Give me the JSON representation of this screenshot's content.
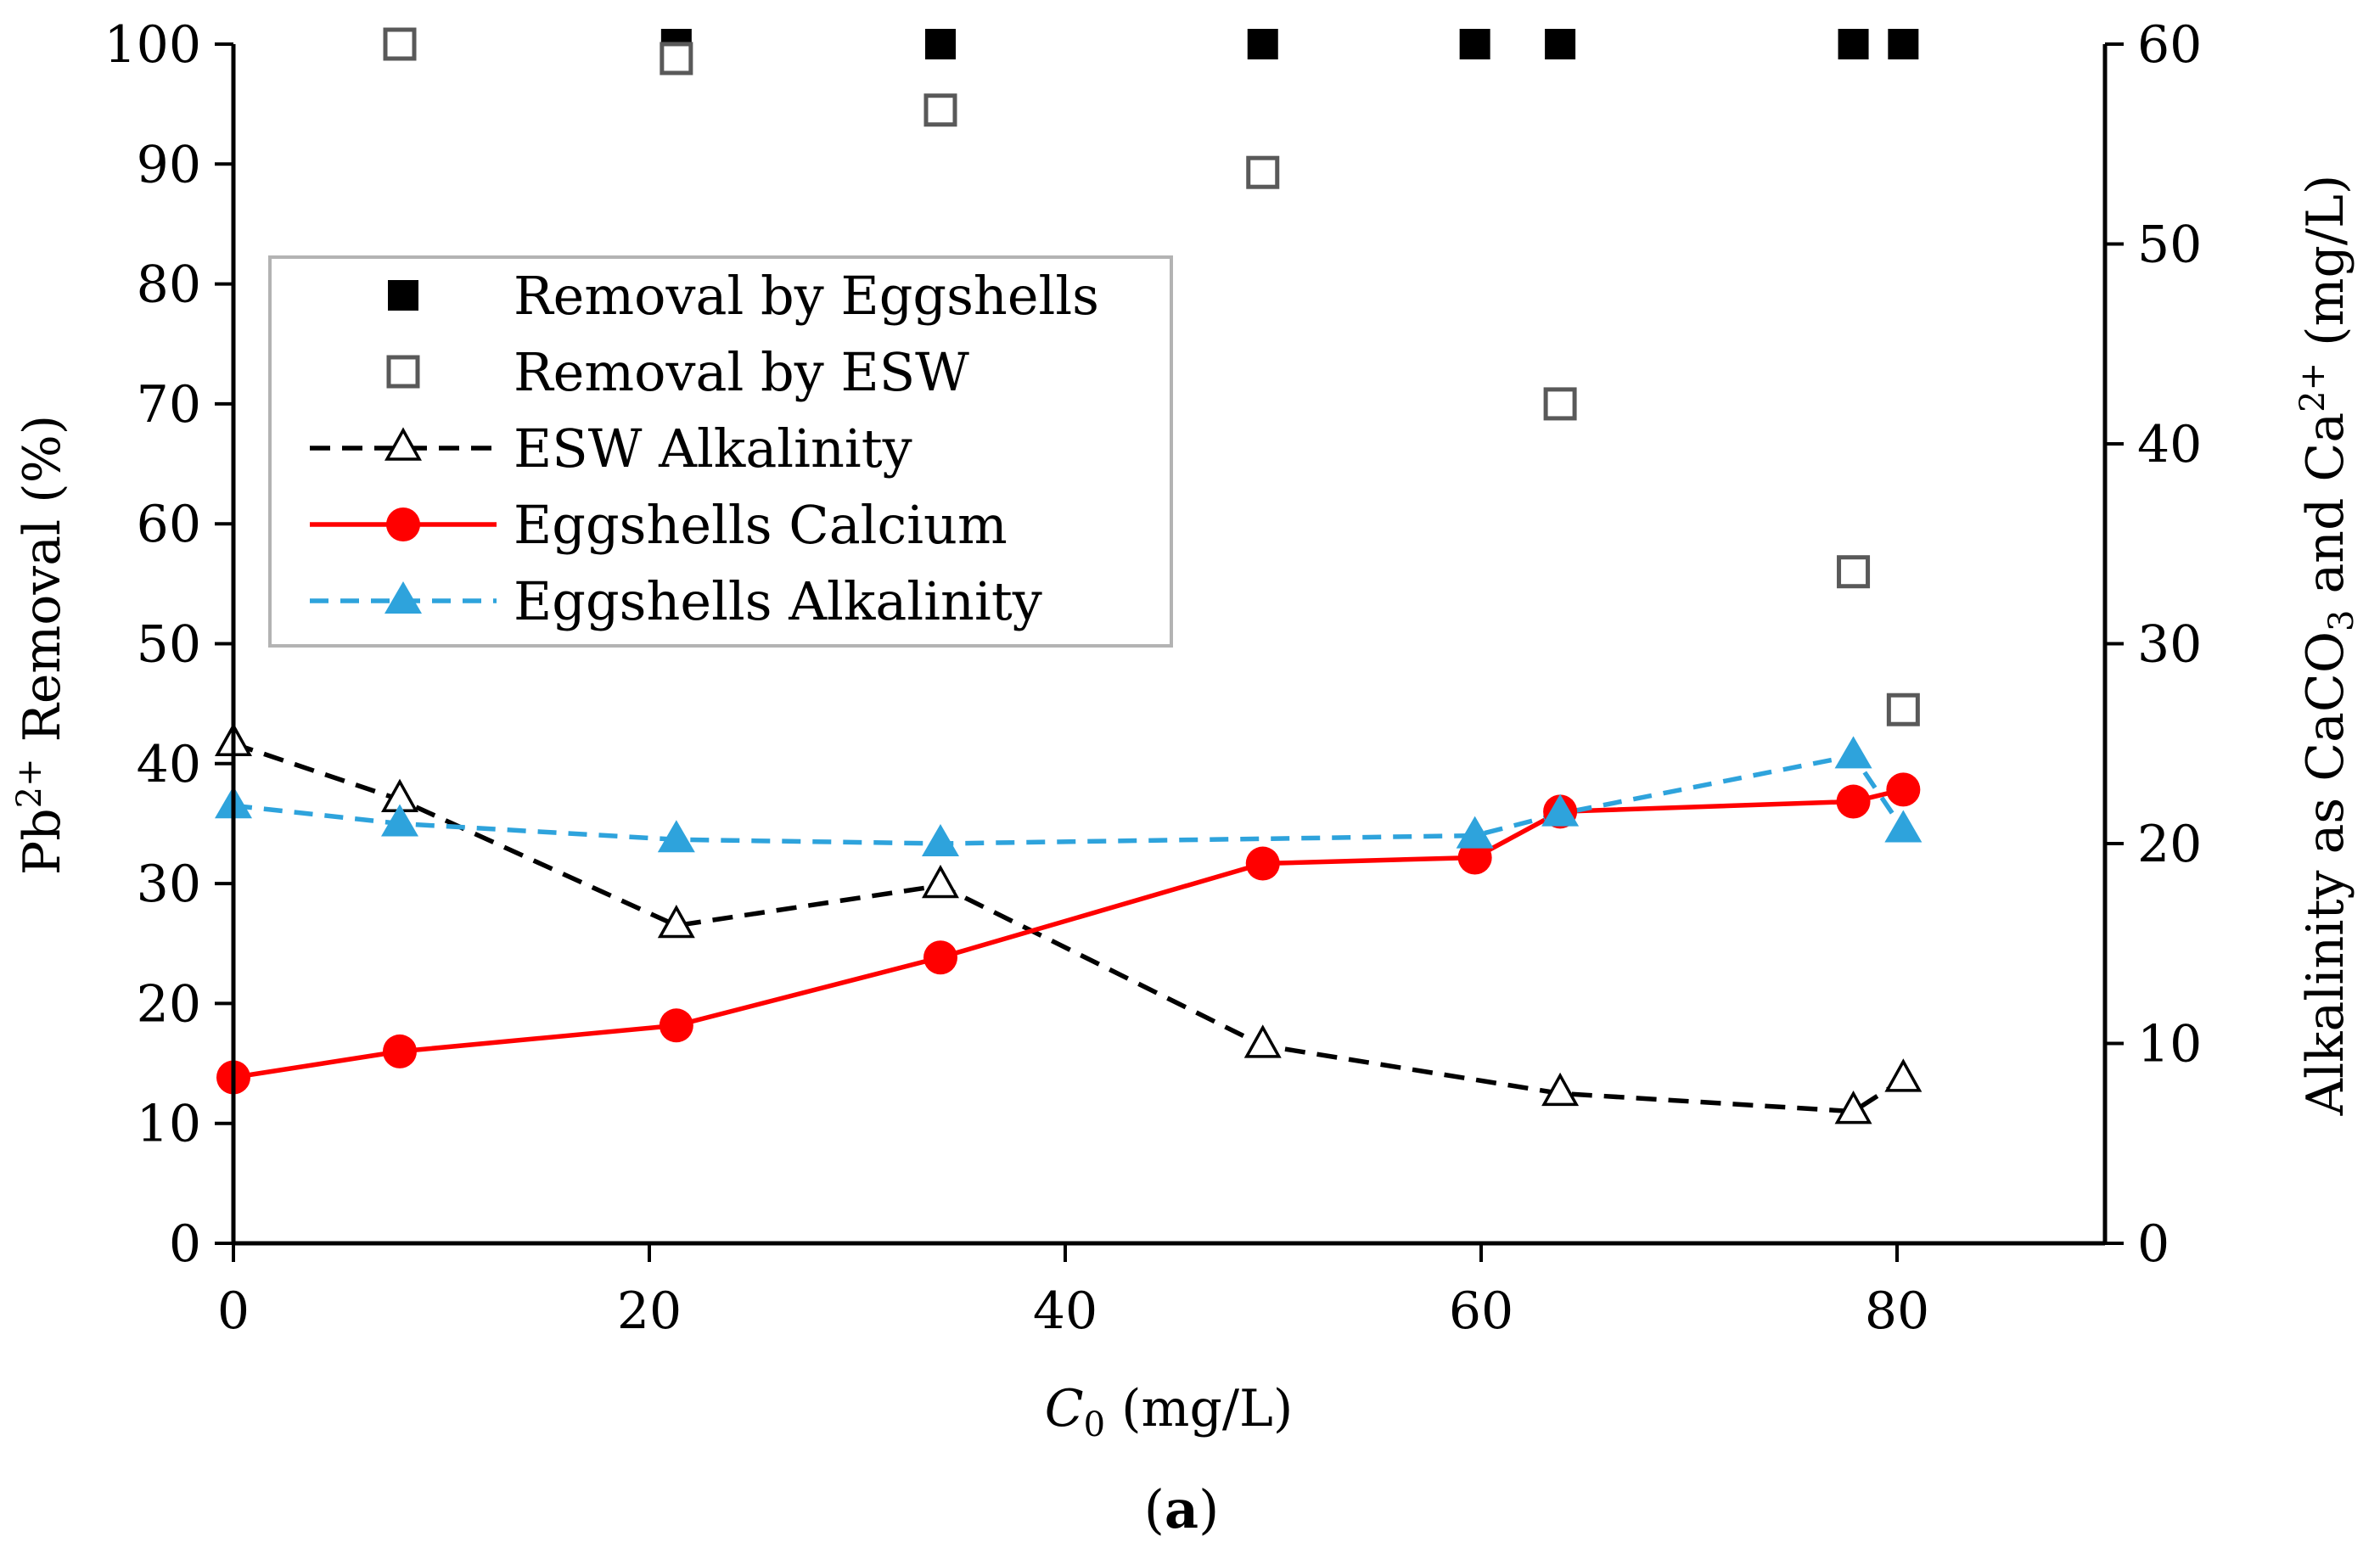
{
  "chart_data": {
    "type": "scatter",
    "caption": {
      "open": "(",
      "letter": "a",
      "close": ")"
    },
    "xaxis": {
      "label_symbol": "C",
      "label_subscript": "0",
      "label_rest": " (mg/L)",
      "range": [
        0,
        90
      ],
      "ticks": [
        0,
        20,
        40,
        60,
        80
      ]
    },
    "yaxis_left": {
      "label_parts": [
        "Pb",
        "2+",
        " Removal (%)"
      ],
      "range": [
        0,
        100
      ],
      "ticks": [
        0,
        10,
        20,
        30,
        40,
        50,
        60,
        70,
        80,
        90,
        100
      ]
    },
    "yaxis_right": {
      "label_parts": [
        "Alkalinity as CaCO",
        "3",
        " and Ca",
        "2+",
        " (mg/L)"
      ],
      "range": [
        0,
        60
      ],
      "ticks": [
        0,
        10,
        20,
        30,
        40,
        50,
        60
      ]
    },
    "legend": {
      "position": "upper-left",
      "border": true
    },
    "series": [
      {
        "name": "Removal by Eggshells",
        "axis": "left",
        "marker": "square-filled",
        "line": "none",
        "color": "#000000",
        "points": [
          [
            8,
            100
          ],
          [
            21.3,
            100
          ],
          [
            34,
            100
          ],
          [
            49.5,
            100
          ],
          [
            59.7,
            100
          ],
          [
            63.8,
            100
          ],
          [
            77.9,
            100
          ],
          [
            80.3,
            100
          ]
        ]
      },
      {
        "name": "Removal by ESW",
        "axis": "left",
        "marker": "square-open",
        "line": "none",
        "color": "#595959",
        "points": [
          [
            8,
            100
          ],
          [
            21.3,
            98.8
          ],
          [
            34,
            94.5
          ],
          [
            49.5,
            89.3
          ],
          [
            63.8,
            70
          ],
          [
            77.9,
            56
          ],
          [
            80.3,
            44.5
          ]
        ]
      },
      {
        "name": "ESW Alkalinity",
        "axis": "right",
        "marker": "triangle-open",
        "line": "dashed",
        "color": "#000000",
        "points": [
          [
            0,
            25
          ],
          [
            8,
            22.2
          ],
          [
            21.3,
            15.9
          ],
          [
            34,
            17.9
          ],
          [
            49.5,
            9.9
          ],
          [
            63.8,
            7.5
          ],
          [
            77.9,
            6.6
          ],
          [
            80.3,
            8.2
          ]
        ]
      },
      {
        "name": "Eggshells Calcium",
        "axis": "right",
        "marker": "circle-filled",
        "line": "solid",
        "color": "#ff0000",
        "points": [
          [
            0,
            8.3
          ],
          [
            8,
            9.6
          ],
          [
            21.3,
            10.9
          ],
          [
            34,
            14.3
          ],
          [
            49.5,
            19
          ],
          [
            59.7,
            19.3
          ],
          [
            63.8,
            21.6
          ],
          [
            77.9,
            22.1
          ],
          [
            80.3,
            22.7
          ]
        ]
      },
      {
        "name": "Eggshells Alkalinity",
        "axis": "right",
        "marker": "triangle-filled",
        "line": "dashed",
        "color": "#2ea3dc",
        "points": [
          [
            0,
            21.9
          ],
          [
            8,
            21
          ],
          [
            21.3,
            20.2
          ],
          [
            34,
            20
          ],
          [
            59.7,
            20.4
          ],
          [
            63.8,
            21.5
          ],
          [
            77.9,
            24.4
          ],
          [
            80.3,
            20.7
          ]
        ]
      }
    ]
  }
}
